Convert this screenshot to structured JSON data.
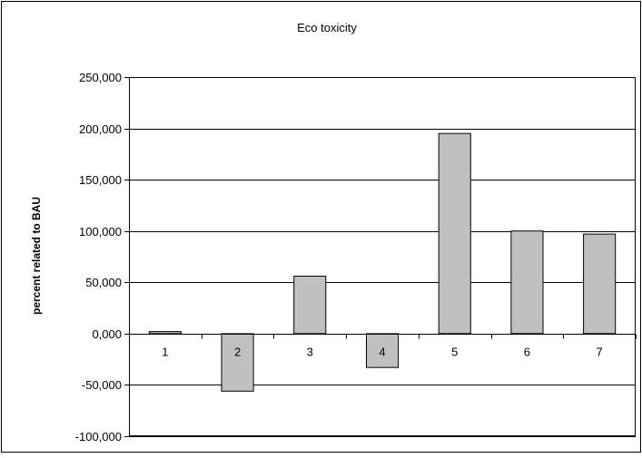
{
  "chart_data": {
    "type": "bar",
    "title": "Eco toxicity",
    "xlabel": "",
    "ylabel": "percent related to BAU",
    "categories": [
      "1",
      "2",
      "3",
      "4",
      "5",
      "6",
      "7"
    ],
    "values": [
      2000,
      -56000,
      56000,
      -33000,
      195000,
      100000,
      97000
    ],
    "ylim": [
      -100000,
      250000
    ],
    "yticks": [
      -100000,
      -50000,
      0,
      50000,
      100000,
      150000,
      200000,
      250000
    ],
    "ytick_labels": [
      "-100,000",
      "-50,000",
      "0,000",
      "50,000",
      "100,000",
      "150,000",
      "200,000",
      "250,000"
    ],
    "grid": true,
    "legend": "none",
    "bar_color": "#c0c0c0",
    "bar_edge_color": "#000000",
    "frame_color": "#000000"
  }
}
